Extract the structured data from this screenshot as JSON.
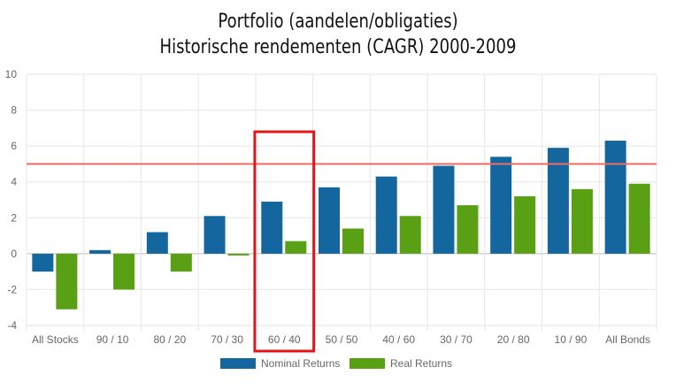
{
  "chart_data": {
    "type": "bar",
    "title": [
      "Portfolio (aandelen/obligaties)",
      "Historische rendementen (CAGR) 2000-2009"
    ],
    "categories": [
      "All Stocks",
      "90 / 10",
      "80 / 20",
      "70 / 30",
      "60 / 40",
      "50 / 50",
      "40 / 60",
      "30 / 70",
      "20 / 80",
      "10 / 90",
      "All Bonds"
    ],
    "series": [
      {
        "name": "Nominal Returns",
        "color": "#14679e",
        "values": [
          -1.0,
          0.2,
          1.2,
          2.1,
          2.9,
          3.7,
          4.3,
          4.9,
          5.4,
          5.9,
          6.3
        ]
      },
      {
        "name": "Real Returns",
        "color": "#5aa014",
        "values": [
          -3.1,
          -2.0,
          -1.0,
          -0.1,
          0.7,
          1.4,
          2.1,
          2.7,
          3.2,
          3.6,
          3.9
        ]
      }
    ],
    "ylim": [
      -4,
      10
    ],
    "yticks": [
      -4,
      -2,
      0,
      2,
      4,
      6,
      8,
      10
    ],
    "grid": true,
    "reference_line": {
      "value": 5.0,
      "color": "#f06a63"
    },
    "highlight": {
      "category": "60 / 40",
      "color": "#e3151a"
    },
    "legend_position": "bottom"
  }
}
